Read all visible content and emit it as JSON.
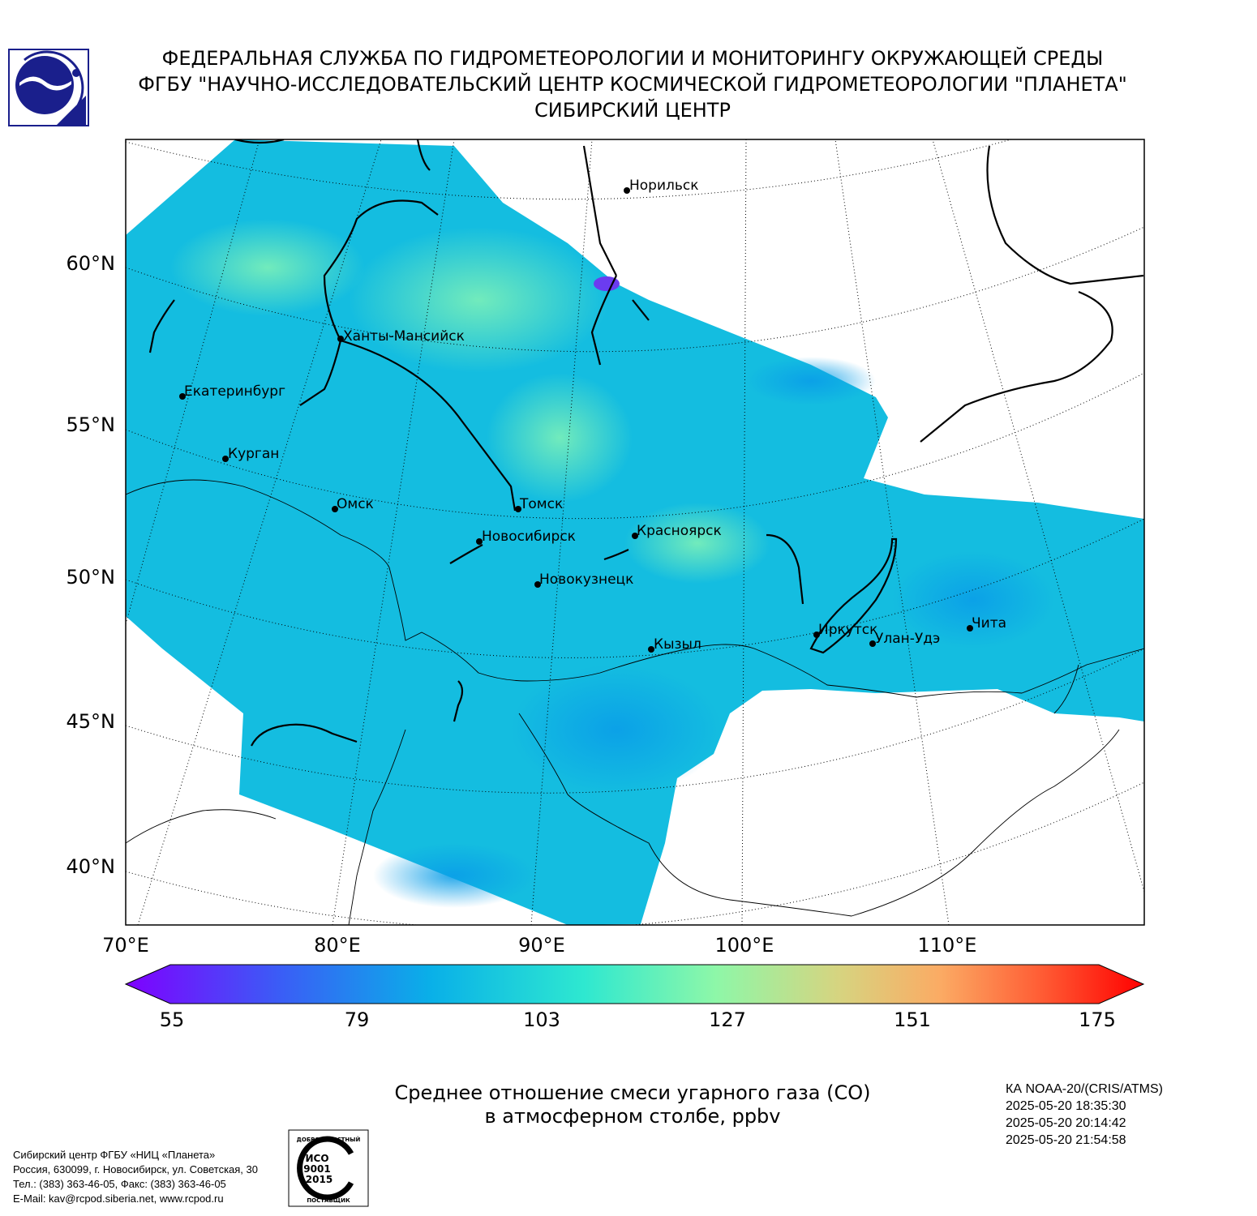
{
  "header": {
    "line1": "ФЕДЕРАЛЬНАЯ СЛУЖБА ПО ГИДРОМЕТЕОРОЛОГИИ И МОНИТОРИНГУ ОКРУЖАЮЩЕЙ СРЕДЫ",
    "line2": "ФГБУ \"НАУЧНО-ИССЛЕДОВАТЕЛЬСКИЙ ЦЕНТР КОСМИЧЕСКОЙ ГИДРОМЕТЕОРОЛОГИИ \"ПЛАНЕТА\"",
    "line3": "СИБИРСКИЙ ЦЕНТР"
  },
  "map": {
    "lat_labels": [
      "60°N",
      "55°N",
      "50°N",
      "45°N",
      "40°N"
    ],
    "lon_labels": [
      "70°E",
      "80°E",
      "90°E",
      "100°E",
      "110°E"
    ],
    "cities": [
      "Норильск",
      "Ханты-Мансийск",
      "Екатеринбург",
      "Курган",
      "Омск",
      "Томск",
      "Новосибирск",
      "Красноярск",
      "Новокузнецк",
      "Кызыл",
      "Иркутск",
      "Улан-Удэ",
      "Чита"
    ]
  },
  "colorbar": {
    "ticks": [
      "55",
      "79",
      "103",
      "127",
      "151",
      "175"
    ],
    "min": 55,
    "max": 175
  },
  "caption": {
    "line1": "Среднее отношение смеси угарного газа (CO)",
    "line2": "в атмосферном столбе, ppbv"
  },
  "satellite": {
    "name": "КА NOAA-20/(CRIS/ATMS)",
    "times": [
      "2025-05-20 18:35:30",
      "2025-05-20 20:14:42",
      "2025-05-20 21:54:58"
    ]
  },
  "organization": {
    "line1": "Сибирский центр ФГБУ «НИЦ «Планета»",
    "line2": "Россия, 630099, г. Новосибирск, ул. Советская, 30",
    "line3": "Тел.: (383) 363-46-05, Факс: (383) 363-46-05",
    "line4": "E-Mail: kav@rcpod.siberia.net, www.rcpod.ru"
  },
  "iso_badge": {
    "top_text": "ДОБРОСОВЕСТНЫЙ",
    "line1": "ИСО",
    "line2": "9001",
    "line3": "-2015",
    "bottom_text": "ПОСТАВЩИК"
  }
}
